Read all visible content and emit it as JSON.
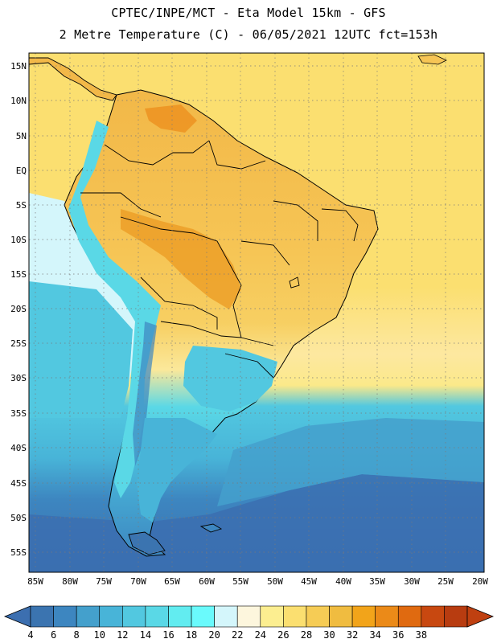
{
  "header": {
    "line1": "CPTEC/INPE/MCT -  Eta Model 15km - GFS",
    "line2": "2 Metre Temperature (C) - 06/05/2021 12UTC fct=153h"
  },
  "lat_labels": [
    "15N",
    "10N",
    "5N",
    "EQ",
    "5S",
    "10S",
    "15S",
    "20S",
    "25S",
    "30S",
    "35S",
    "40S",
    "45S",
    "50S",
    "55S"
  ],
  "lon_labels": [
    "85W",
    "80W",
    "75W",
    "70W",
    "65W",
    "60W",
    "55W",
    "50W",
    "45W",
    "40W",
    "35W",
    "30W",
    "25W",
    "20W"
  ],
  "colorbar": {
    "labels": [
      "4",
      "6",
      "8",
      "10",
      "12",
      "14",
      "16",
      "18",
      "20",
      "22",
      "24",
      "26",
      "28",
      "30",
      "32",
      "34",
      "36",
      "38"
    ],
    "colors": [
      "#3b74b0",
      "#3d86c0",
      "#44a0cc",
      "#48b4d8",
      "#52c8e0",
      "#5ad8e6",
      "#62ecf0",
      "#6afafc",
      "#d4f6fb",
      "#fdf6dd",
      "#fcee90",
      "#fbdf70",
      "#f6cc55",
      "#f0bc40",
      "#f2a41a",
      "#eb8a18",
      "#e06a10",
      "#c84810",
      "#b83c10"
    ],
    "low_color": "#3c6fb0",
    "high_color": "#bf4010"
  },
  "map": {
    "ocean_colors": {
      "equatorial": "#fbdf70",
      "subtropical": "#fce7a0",
      "temperate": "#48b4d8",
      "southern": "#3b74b0"
    },
    "land_colors": {
      "amazon": "#f6c555",
      "hot_core": "#eb8a18",
      "andes": "#5ad8e6",
      "patagonia": "#44a0cc"
    }
  }
}
